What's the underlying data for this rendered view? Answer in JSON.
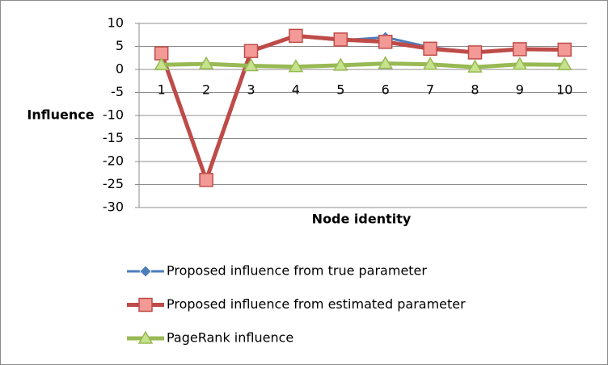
{
  "chart_data": {
    "type": "line",
    "x_label": "Node identity",
    "y_label": "Influence",
    "categories": [
      "1",
      "2",
      "3",
      "4",
      "5",
      "6",
      "7",
      "8",
      "9",
      "10"
    ],
    "series": [
      {
        "name": "Proposed influence from true parameter",
        "color": "#4a7ebb",
        "marker": "diamond",
        "values": [
          3.5,
          -24,
          4,
          7.2,
          6.3,
          7,
          4.8,
          3.8,
          4.5,
          4.3
        ]
      },
      {
        "name": "Proposed influence from estimated parameter",
        "color": "#be4b48",
        "marker": "square",
        "values": [
          3.5,
          -24,
          4,
          7.3,
          6.5,
          6,
          4.5,
          3.7,
          4.4,
          4.3
        ]
      },
      {
        "name": "PageRank influence",
        "color": "#98b954",
        "marker": "triangle",
        "values": [
          1,
          1.2,
          0.8,
          0.6,
          0.9,
          1.3,
          1.1,
          0.5,
          1.1,
          1.0
        ]
      }
    ],
    "ylim": [
      -30,
      10
    ],
    "yticks": [
      -30,
      -25,
      -20,
      -15,
      -10,
      -5,
      0,
      5,
      10
    ],
    "grid": true,
    "legend": "bottom"
  }
}
